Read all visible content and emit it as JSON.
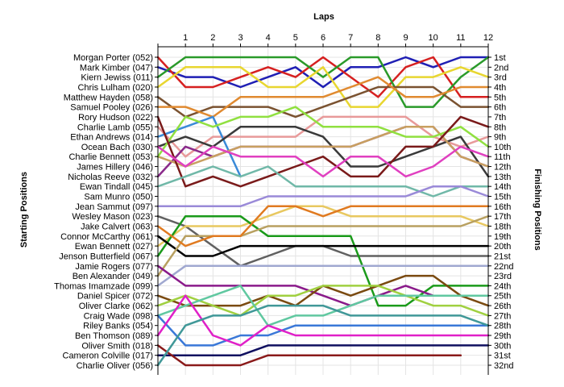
{
  "chart_data": {
    "type": "line",
    "title": "",
    "xlabel": "Laps",
    "ylabel_left": "Starting Positions",
    "ylabel_right": "Finishing Positions",
    "x": [
      0,
      1,
      2,
      3,
      4,
      5,
      6,
      7,
      8,
      9,
      10,
      11,
      12
    ],
    "x_tick_labels": [
      "1",
      "2",
      "3",
      "4",
      "5",
      "6",
      "7",
      "8",
      "9",
      "10",
      "11",
      "12"
    ],
    "xlim": [
      0,
      12
    ],
    "ylim": [
      1,
      32
    ],
    "y_inverted": true,
    "grid": true,
    "legend": "none",
    "left_labels": [
      "Morgan Porter (052)",
      "Mark Kimber (047)",
      "Kiern Jewiss (011)",
      "Chris Lulham (020)",
      "Matthew Hayden (058)",
      "Samuel Pooley (026)",
      "Rory Hudson (022)",
      "Charlie Lamb (055)",
      "Ethan Andrews (014)",
      "Ocean Bach (030)",
      "Charlie Bennett (053)",
      "James Hillery (046)",
      "Nicholas Reeve (032)",
      "Ewan Tindall (045)",
      "Sam Munro (050)",
      "Jean Sammut (097)",
      "Wesley Mason (023)",
      "Jake Calvert (063)",
      "Connor McCarthy (061)",
      "Ewan Bennett (027)",
      "Jenson Butterfield (067)",
      "Jamie Rogers (077)",
      "Ben Alexander (049)",
      "Thomas Imamzade (099)",
      "Daniel Spicer (072)",
      "Oliver Clarke (062)",
      "Craig Wade (098)",
      "Riley Banks (054)",
      "Ben Thomson (089)",
      "Oliver Smith (018)",
      "Cameron Colville (017)",
      "Charlie Oliver (056)"
    ],
    "right_labels": [
      "1st",
      "2nd",
      "3rd",
      "4th",
      "5th",
      "6th",
      "7th",
      "8th",
      "9th",
      "10th",
      "11th",
      "12th",
      "13th",
      "14th",
      "15th",
      "16th",
      "17th",
      "18th",
      "19th",
      "20th",
      "21st",
      "22nd",
      "23rd",
      "24th",
      "25th",
      "26th",
      "27th",
      "28th",
      "29th",
      "30th",
      "31st",
      "32nd"
    ],
    "series": [
      {
        "color": "#1f1fb4",
        "values": [
          2,
          3,
          3,
          4,
          3,
          2,
          4,
          2,
          2,
          1,
          2,
          1,
          1
        ]
      },
      {
        "color": "#d62020",
        "values": [
          1,
          4,
          4,
          3,
          2,
          3,
          1,
          3,
          5,
          2,
          1,
          5,
          5
        ]
      },
      {
        "color": "#2a9a2a",
        "values": [
          3,
          1,
          1,
          1,
          1,
          1,
          3,
          1,
          1,
          6,
          6,
          3,
          1
        ]
      },
      {
        "color": "#e8d630",
        "values": [
          4,
          2,
          2,
          2,
          4,
          4,
          2,
          6,
          6,
          3,
          3,
          2,
          3
        ]
      },
      {
        "color": "#7a5230",
        "values": [
          5,
          7,
          6,
          6,
          6,
          7,
          6,
          5,
          4,
          4,
          4,
          6,
          6
        ]
      },
      {
        "color": "#e08a30",
        "values": [
          6,
          6,
          7,
          5,
          5,
          5,
          5,
          4,
          3,
          5,
          5,
          4,
          4
        ]
      },
      {
        "color": "#e89a9a",
        "values": [
          8,
          11,
          9,
          9,
          9,
          9,
          7,
          7,
          7,
          7,
          9,
          10,
          9
        ]
      },
      {
        "color": "#3a8ad8",
        "values": [
          9,
          8,
          7,
          13,
          null,
          null,
          null,
          null,
          null,
          null,
          null,
          null,
          null
        ]
      },
      {
        "color": "#3a3a3a",
        "values": [
          10,
          9,
          10,
          8,
          8,
          8,
          9,
          12,
          12,
          11,
          10,
          9,
          13
        ]
      },
      {
        "color": "#8a2a8a",
        "values": [
          13,
          10,
          11,
          10,
          10,
          10,
          10,
          10,
          9,
          8,
          8,
          11,
          12
        ]
      },
      {
        "color": "#c8a060",
        "values": [
          11,
          12,
          11,
          10,
          10,
          10,
          10,
          10,
          9,
          8,
          8,
          11,
          12
        ]
      },
      {
        "color": "#90e040",
        "values": [
          11,
          7,
          8,
          7,
          7,
          6,
          8,
          8,
          8,
          9,
          9,
          8,
          10
        ]
      },
      {
        "color": "#7a1a1a",
        "values": [
          7,
          14,
          13,
          14,
          13,
          12,
          11,
          13,
          13,
          10,
          10,
          7,
          8
        ]
      },
      {
        "color": "#70b8a8",
        "values": [
          14,
          13,
          12,
          13,
          12,
          14,
          14,
          14,
          14,
          14,
          15,
          14,
          14
        ]
      },
      {
        "color": "#e040c0",
        "values": [
          10,
          12,
          10,
          11,
          11,
          11,
          13,
          11,
          11,
          13,
          12,
          10,
          11
        ]
      },
      {
        "color": "#9a8ad8",
        "values": [
          16,
          16,
          16,
          16,
          15,
          15,
          15,
          15,
          15,
          15,
          14,
          14,
          15
        ]
      },
      {
        "color": "#606060",
        "values": [
          17,
          18,
          20,
          22,
          21,
          20,
          20,
          21,
          21,
          21,
          21,
          21,
          21
        ]
      },
      {
        "color": "#e8c860",
        "values": [
          20,
          18,
          18,
          18,
          17,
          16,
          16,
          17,
          17,
          17,
          17,
          17,
          18
        ]
      },
      {
        "color": "#1a9a1a",
        "values": [
          21,
          17,
          17,
          17,
          19,
          19,
          19,
          19,
          26,
          26,
          24,
          24,
          24
        ]
      },
      {
        "color": "#000000",
        "values": [
          19,
          21,
          21,
          20,
          20,
          20,
          20,
          20,
          20,
          20,
          20,
          20,
          20
        ]
      },
      {
        "color": "#b8a060",
        "values": [
          23,
          19,
          19,
          19,
          18,
          18,
          18,
          18,
          18,
          18,
          18,
          18,
          17
        ]
      },
      {
        "color": "#e07a20",
        "values": [
          18,
          20,
          19,
          19,
          16,
          16,
          17,
          16,
          16,
          16,
          16,
          16,
          16
        ]
      },
      {
        "color": "#a0a8d0",
        "values": [
          24,
          22,
          22,
          22,
          22,
          22,
          22,
          22,
          22,
          22,
          22,
          22,
          22
        ]
      },
      {
        "color": "#8a1a8a",
        "values": [
          22,
          24,
          24,
          24,
          24,
          24,
          25,
          26,
          25,
          24,
          25,
          25,
          25
        ]
      },
      {
        "color": "#7a4a10",
        "values": [
          25,
          26,
          26,
          26,
          25,
          26,
          24,
          25,
          24,
          23,
          23,
          25,
          26
        ]
      },
      {
        "color": "#a0d040",
        "values": [
          26,
          25,
          26,
          27,
          25,
          25,
          24,
          24,
          24,
          25,
          26,
          26,
          27
        ]
      },
      {
        "color": "#60c8a0",
        "values": [
          27,
          26,
          25,
          24,
          28,
          27,
          27,
          26,
          25,
          25,
          25,
          25,
          25
        ]
      },
      {
        "color": "#3a78d8",
        "values": [
          27,
          30,
          30,
          29,
          29,
          28,
          28,
          28,
          28,
          28,
          28,
          28,
          28
        ]
      },
      {
        "color": "#e020c8",
        "values": [
          29,
          25,
          29,
          30,
          28,
          29,
          29,
          29,
          29,
          29,
          29,
          29,
          29
        ]
      },
      {
        "color": "#101060",
        "values": [
          31,
          31,
          31,
          31,
          30,
          30,
          30,
          30,
          30,
          30,
          30,
          30,
          30
        ]
      },
      {
        "color": "#8a1a1a",
        "values": [
          30,
          32,
          32,
          32,
          31,
          31,
          31,
          31,
          31,
          31,
          31,
          31,
          null
        ]
      },
      {
        "color": "#409898",
        "values": [
          32,
          28,
          27,
          27,
          26,
          26,
          26,
          27,
          27,
          27,
          27,
          27,
          28
        ]
      }
    ]
  }
}
